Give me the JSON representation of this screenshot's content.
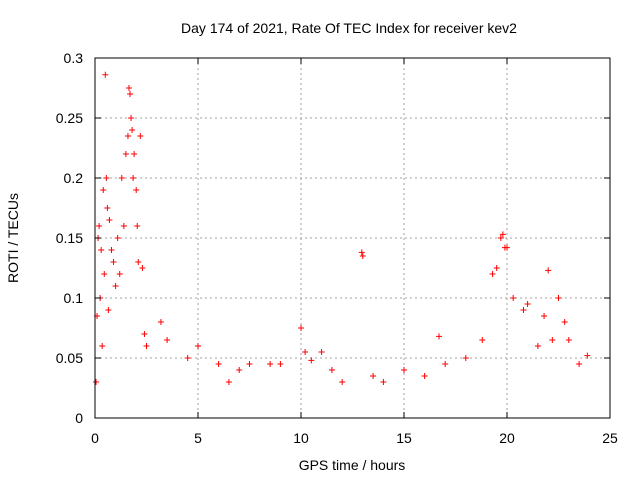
{
  "chart_data": {
    "type": "scatter",
    "title": "Day 174 of 2021, Rate Of TEC Index for receiver kev2",
    "xlabel": "GPS time / hours",
    "ylabel": "ROTI / TECUs",
    "xlim": [
      0,
      25
    ],
    "ylim": [
      0,
      0.3
    ],
    "xticks": [
      0,
      5,
      10,
      15,
      20,
      25
    ],
    "yticks": [
      0,
      0.05,
      0.1,
      0.15,
      0.2,
      0.25,
      0.3
    ],
    "xtick_labels": [
      "0",
      "5",
      "10",
      "15",
      "20",
      "25"
    ],
    "ytick_labels": [
      "0",
      "0.05",
      "0.1",
      "0.15",
      "0.2",
      "0.25",
      "0.3"
    ],
    "grid": true,
    "marker": "+",
    "color": "#ff0000",
    "series": [
      {
        "name": "ROTI",
        "points": [
          [
            0.05,
            0.03
          ],
          [
            0.1,
            0.085
          ],
          [
            0.15,
            0.15
          ],
          [
            0.2,
            0.16
          ],
          [
            0.25,
            0.1
          ],
          [
            0.3,
            0.14
          ],
          [
            0.35,
            0.06
          ],
          [
            0.4,
            0.19
          ],
          [
            0.45,
            0.12
          ],
          [
            0.5,
            0.286
          ],
          [
            0.55,
            0.2
          ],
          [
            0.6,
            0.175
          ],
          [
            0.65,
            0.09
          ],
          [
            0.7,
            0.165
          ],
          [
            0.8,
            0.14
          ],
          [
            0.9,
            0.13
          ],
          [
            1.0,
            0.11
          ],
          [
            1.1,
            0.15
          ],
          [
            1.2,
            0.12
          ],
          [
            1.3,
            0.2
          ],
          [
            1.4,
            0.16
          ],
          [
            1.5,
            0.22
          ],
          [
            1.6,
            0.235
          ],
          [
            1.65,
            0.275
          ],
          [
            1.7,
            0.27
          ],
          [
            1.75,
            0.25
          ],
          [
            1.8,
            0.24
          ],
          [
            1.85,
            0.2
          ],
          [
            1.9,
            0.22
          ],
          [
            2.0,
            0.19
          ],
          [
            2.05,
            0.16
          ],
          [
            2.1,
            0.13
          ],
          [
            2.2,
            0.235
          ],
          [
            2.3,
            0.125
          ],
          [
            2.4,
            0.07
          ],
          [
            2.5,
            0.06
          ],
          [
            3.2,
            0.08
          ],
          [
            3.5,
            0.065
          ],
          [
            4.5,
            0.05
          ],
          [
            5.0,
            0.06
          ],
          [
            6.0,
            0.045
          ],
          [
            6.5,
            0.03
          ],
          [
            7.0,
            0.04
          ],
          [
            7.5,
            0.045
          ],
          [
            8.5,
            0.045
          ],
          [
            9.0,
            0.045
          ],
          [
            10.0,
            0.075
          ],
          [
            10.2,
            0.055
          ],
          [
            10.5,
            0.048
          ],
          [
            11.0,
            0.055
          ],
          [
            11.5,
            0.04
          ],
          [
            12.0,
            0.03
          ],
          [
            12.95,
            0.138
          ],
          [
            13.0,
            0.135
          ],
          [
            13.5,
            0.035
          ],
          [
            14.0,
            0.03
          ],
          [
            15.0,
            0.04
          ],
          [
            16.0,
            0.035
          ],
          [
            16.7,
            0.068
          ],
          [
            17.0,
            0.045
          ],
          [
            18.0,
            0.05
          ],
          [
            18.8,
            0.065
          ],
          [
            19.3,
            0.12
          ],
          [
            19.5,
            0.125
          ],
          [
            19.7,
            0.15
          ],
          [
            19.8,
            0.153
          ],
          [
            19.9,
            0.142
          ],
          [
            20.0,
            0.142
          ],
          [
            20.3,
            0.1
          ],
          [
            20.8,
            0.09
          ],
          [
            21.0,
            0.095
          ],
          [
            21.5,
            0.06
          ],
          [
            21.8,
            0.085
          ],
          [
            22.0,
            0.123
          ],
          [
            22.2,
            0.065
          ],
          [
            22.5,
            0.1
          ],
          [
            22.8,
            0.08
          ],
          [
            23.0,
            0.065
          ],
          [
            23.5,
            0.045
          ],
          [
            23.9,
            0.052
          ]
        ]
      }
    ]
  }
}
